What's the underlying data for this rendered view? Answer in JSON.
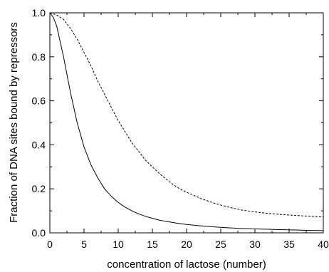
{
  "chart_data": {
    "type": "line",
    "title": "",
    "xlabel": "concentration of lactose (number)",
    "ylabel": "Fraction of DNA sites bound by repressors",
    "xlim": [
      0,
      40
    ],
    "ylim": [
      0.0,
      1.0
    ],
    "x_ticks": [
      0,
      5,
      10,
      15,
      20,
      25,
      30,
      35,
      40
    ],
    "x_tick_labels": [
      "0",
      "5",
      "10",
      "15",
      "20",
      "25",
      "30",
      "35",
      "40"
    ],
    "y_ticks": [
      0.0,
      0.2,
      0.4,
      0.6,
      0.8,
      1.0
    ],
    "y_tick_labels": [
      "0.0",
      "0.2",
      "0.4",
      "0.6",
      "0.8",
      "1.0"
    ],
    "grid": false,
    "legend": "none",
    "series": [
      {
        "style": "solid",
        "color": "#000000",
        "x": [
          0,
          0.5,
          1,
          1.5,
          2,
          2.5,
          3,
          3.5,
          4,
          5,
          6,
          7,
          8,
          9,
          10,
          11,
          12,
          13,
          14,
          15,
          16,
          17,
          18,
          19,
          20,
          22,
          24,
          26,
          28,
          30,
          32,
          34,
          36,
          38,
          40
        ],
        "y": [
          1.0,
          0.98,
          0.94,
          0.87,
          0.8,
          0.72,
          0.64,
          0.57,
          0.5,
          0.39,
          0.31,
          0.25,
          0.2,
          0.166,
          0.138,
          0.117,
          0.1,
          0.086,
          0.075,
          0.066,
          0.058,
          0.052,
          0.047,
          0.042,
          0.038,
          0.032,
          0.027,
          0.023,
          0.02,
          0.018,
          0.016,
          0.014,
          0.013,
          0.011,
          0.01
        ]
      },
      {
        "style": "dashed",
        "color": "#000000",
        "x": [
          0,
          1,
          2,
          3,
          4,
          5,
          6,
          7,
          8,
          9,
          10,
          11,
          12,
          13,
          14,
          15,
          16,
          17,
          18,
          19,
          20,
          22,
          24,
          26,
          28,
          30,
          32,
          34,
          36,
          38,
          40
        ],
        "y": [
          1.0,
          0.99,
          0.97,
          0.93,
          0.88,
          0.82,
          0.76,
          0.69,
          0.63,
          0.57,
          0.51,
          0.46,
          0.41,
          0.37,
          0.33,
          0.3,
          0.27,
          0.245,
          0.22,
          0.2,
          0.185,
          0.157,
          0.135,
          0.118,
          0.104,
          0.095,
          0.088,
          0.083,
          0.079,
          0.075,
          0.072
        ]
      }
    ]
  }
}
